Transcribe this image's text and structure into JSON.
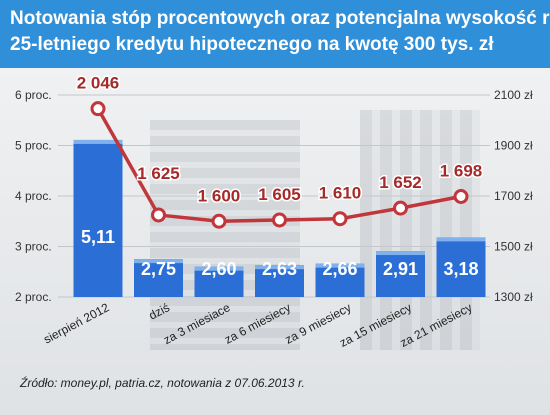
{
  "header": {
    "title_line1": "Notowania stóp procentowych oraz potencjalna wysokość raty",
    "title_line2": "25-letniego kredytu hipotecznego na kwotę 300 tys. zł"
  },
  "source": "Źródło: money.pl, patria.cz, notowania z 07.06.2013 r.",
  "colors": {
    "header_bg": "#2f8fd8",
    "bar_fill": "#2b6fd6",
    "bar_top": "#7fb2ec",
    "line": "#c0363b",
    "marker_fill": "#ffffff",
    "value_label": "#a52a2a"
  },
  "chart_data": {
    "type": "bar",
    "categories": [
      "sierpień 2012",
      "dziś",
      "za 3 miesiace",
      "za 6 miesiecy",
      "za 9 miesiecy",
      "za 15 miesiecy",
      "za 21 miesiecy"
    ],
    "series": [
      {
        "type": "bar",
        "axis": "left",
        "values": [
          5.11,
          2.75,
          2.6,
          2.63,
          2.66,
          2.91,
          3.18
        ],
        "labels": [
          "5,11",
          "2,75",
          "2,60",
          "2,63",
          "2,66",
          "2,91",
          "3,18"
        ]
      },
      {
        "type": "line",
        "axis": "right",
        "values": [
          2046,
          1625,
          1600,
          1605,
          1610,
          1652,
          1698
        ],
        "labels": [
          "2 046",
          "1 625",
          "1 600",
          "1 605",
          "1 610",
          "1 652",
          "1 698"
        ]
      }
    ],
    "y_left": {
      "ylim": [
        2,
        6
      ],
      "ticks": [
        6,
        5,
        4,
        3,
        2
      ],
      "tick_labels": [
        "6 proc.",
        "5 proc.",
        "4 proc.",
        "3 proc.",
        "2 proc."
      ]
    },
    "y_right": {
      "ylim": [
        1300,
        2100
      ],
      "ticks": [
        2100,
        1900,
        1700,
        1500,
        1300
      ],
      "tick_labels": [
        "2100 zł",
        "1900 zł",
        "1700 zł",
        "1500 zł",
        "1300 zł"
      ]
    },
    "grid": true,
    "legend": "none"
  }
}
